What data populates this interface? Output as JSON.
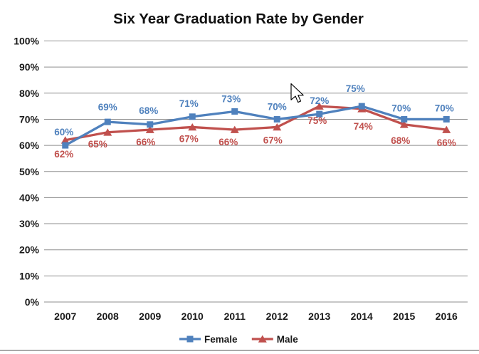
{
  "window": {
    "background": "#ffffff",
    "bottom_border_color": "#a9a9a9"
  },
  "chart_data": {
    "type": "line",
    "title": "Six Year Graduation Rate by Gender",
    "categories": [
      "2007",
      "2008",
      "2009",
      "2010",
      "2011",
      "2012",
      "2013",
      "2014",
      "2015",
      "2016"
    ],
    "series": [
      {
        "name": "Female",
        "color": "#4F81BD",
        "marker": "square",
        "values": [
          60,
          69,
          68,
          71,
          73,
          70,
          72,
          75,
          70,
          70
        ],
        "label_offsets": [
          [
            -2,
            -19
          ],
          [
            0,
            -21
          ],
          [
            -2,
            -20
          ],
          [
            -5,
            -19
          ],
          [
            -5,
            -18
          ],
          [
            0,
            -18
          ],
          [
            0,
            -19
          ],
          [
            -9,
            -25
          ],
          [
            -4,
            -16
          ],
          [
            -3,
            -16
          ]
        ]
      },
      {
        "name": "Male",
        "color": "#C0504D",
        "marker": "triangle",
        "values": [
          62,
          65,
          66,
          67,
          66,
          67,
          75,
          74,
          68,
          66
        ],
        "label_offsets": [
          [
            -2,
            19
          ],
          [
            -14,
            16
          ],
          [
            -6,
            17
          ],
          [
            -5,
            16
          ],
          [
            -9,
            17
          ],
          [
            -6,
            18
          ],
          [
            -3,
            20
          ],
          [
            2,
            24
          ],
          [
            -5,
            22
          ],
          [
            0,
            18
          ]
        ]
      }
    ],
    "data_labels": true,
    "label_suffix": "%",
    "xlabel": "",
    "ylabel": "",
    "y_axis": {
      "min": 0,
      "max": 100,
      "step": 10,
      "tick_labels": [
        "0%",
        "10%",
        "20%",
        "30%",
        "40%",
        "50%",
        "60%",
        "70%",
        "80%",
        "90%",
        "100%"
      ]
    },
    "grid": true,
    "gridline_color": "#8f8f8f",
    "legend_position": "bottom"
  },
  "cursor": {
    "visible": true,
    "shape": "arrow"
  }
}
